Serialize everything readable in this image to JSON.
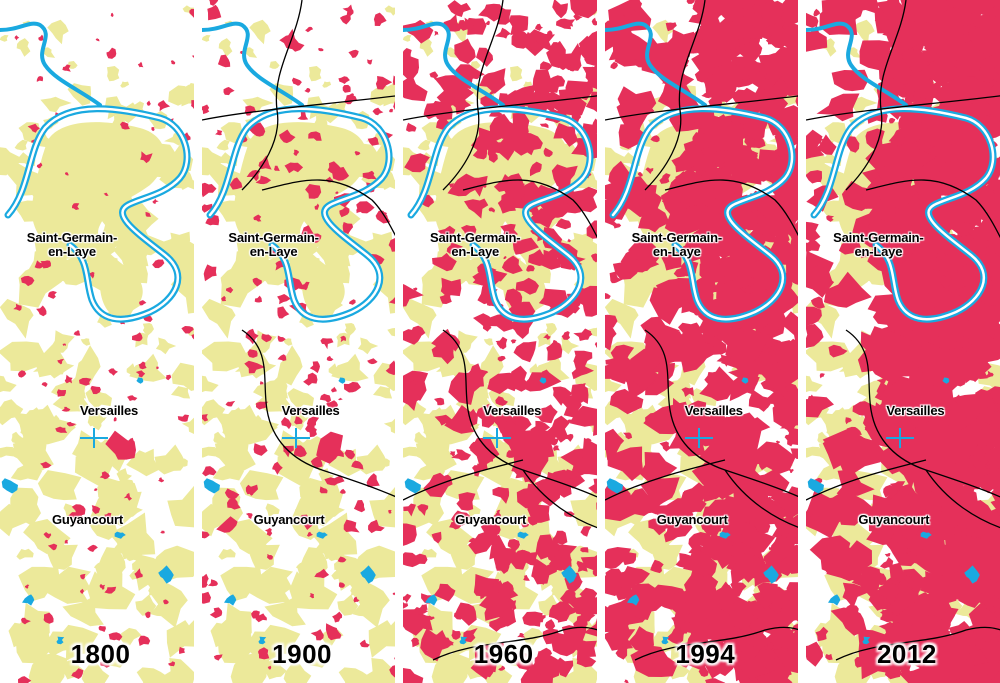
{
  "colors": {
    "urban": "#e5305a",
    "forest": "#ece99a",
    "water": "#1aa9e0",
    "rail": "#000000",
    "background": "#ffffff"
  },
  "places": {
    "saint_germain_line1": "Saint-Germain-",
    "saint_germain_line2": "en-Laye",
    "versailles": "Versailles",
    "guyancourt": "Guyancourt"
  },
  "panels": [
    {
      "year": "1800",
      "urban_level": 0.04,
      "rail": false
    },
    {
      "year": "1900",
      "urban_level": 0.12,
      "rail": true
    },
    {
      "year": "1960",
      "urban_level": 0.38,
      "rail": true
    },
    {
      "year": "1994",
      "urban_level": 0.6,
      "rail": true
    },
    {
      "year": "2012",
      "urban_level": 0.72,
      "rail": true
    }
  ]
}
